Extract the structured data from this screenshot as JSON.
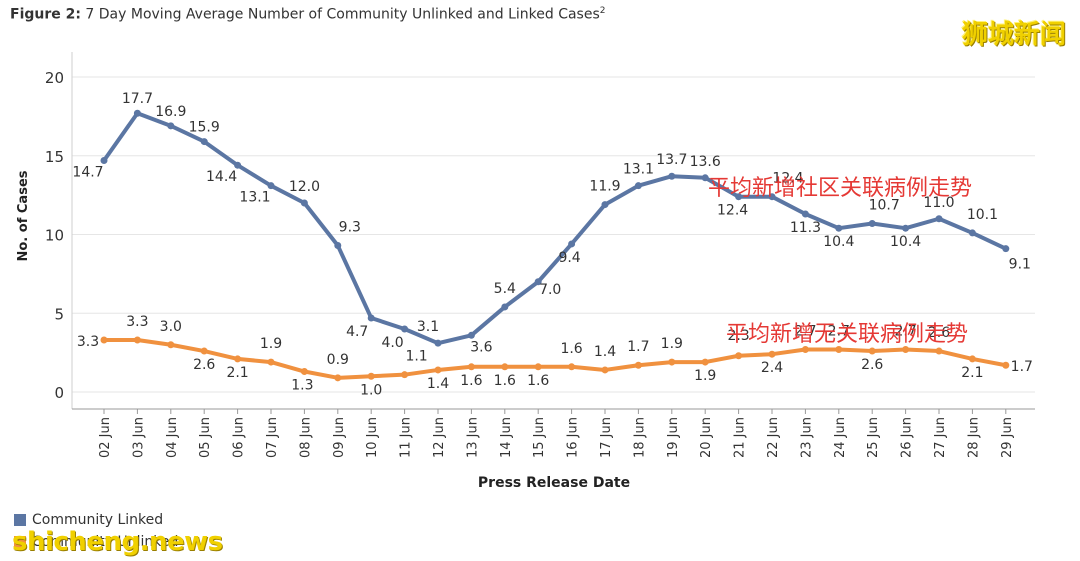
{
  "title": {
    "prefix": "Figure 2:",
    "text": " 7 Day Moving Average Number of Community Unlinked and Linked Cases",
    "sup": "2"
  },
  "watermarks": {
    "top": "狮城新闻",
    "bottom": "shicheng.news"
  },
  "annotations": {
    "linked": "平均新增社区关联病例走势",
    "unlinked": "平均新增无关联病例走势"
  },
  "legend": [
    {
      "label": "Community Linked",
      "color": "#5b76a3"
    },
    {
      "label": "Community Unlinked",
      "color": "#f0913f"
    }
  ],
  "chart_data": {
    "type": "line",
    "xlabel": "Press Release Date",
    "ylabel": "No. of Cases",
    "ylim": [
      0,
      20
    ],
    "yticks": [
      0,
      5,
      10,
      15,
      20
    ],
    "grid": true,
    "categories": [
      "02 Jun",
      "03 Jun",
      "04 Jun",
      "05 Jun",
      "06 Jun",
      "07 Jun",
      "08 Jun",
      "09 Jun",
      "10 Jun",
      "11 Jun",
      "12 Jun",
      "13 Jun",
      "14 Jun",
      "15 Jun",
      "16 Jun",
      "17 Jun",
      "18 Jun",
      "19 Jun",
      "20 Jun",
      "21 Jun",
      "22 Jun",
      "23 Jun",
      "24 Jun",
      "25 Jun",
      "26 Jun",
      "27 Jun",
      "28 Jun",
      "29 Jun"
    ],
    "series": [
      {
        "name": "Community Linked",
        "color": "#5b76a3",
        "values": [
          14.7,
          17.7,
          16.9,
          15.9,
          14.4,
          13.1,
          12.0,
          9.3,
          4.7,
          4.0,
          3.1,
          3.6,
          5.4,
          7.0,
          9.4,
          11.9,
          13.1,
          13.7,
          13.6,
          12.4,
          12.4,
          11.3,
          10.4,
          10.7,
          10.4,
          11.0,
          10.1,
          9.1
        ],
        "labels": [
          "14.7",
          "17.7",
          "16.9",
          "15.9",
          "14.4",
          "13.1",
          "12.0",
          "9.3",
          "4.7",
          "4.0",
          "3.1",
          "3.6",
          "5.4",
          "7.0",
          "9.4",
          "11.9",
          "13.1",
          "13.7",
          "13.6",
          "12.4",
          "12.4",
          "11.3",
          "10.4",
          "10.7",
          "10.4",
          "11.0",
          "10.1",
          "9.1"
        ]
      },
      {
        "name": "Community Unlinked",
        "color": "#f0913f",
        "values": [
          3.3,
          3.3,
          3.0,
          2.6,
          2.1,
          1.9,
          1.3,
          0.9,
          1.0,
          1.1,
          1.4,
          1.6,
          1.6,
          1.6,
          1.6,
          1.4,
          1.7,
          1.9,
          1.9,
          2.3,
          2.4,
          2.7,
          2.7,
          2.6,
          2.7,
          2.6,
          2.1,
          1.7
        ],
        "labels": [
          "3.3",
          "3.3",
          "3.0",
          "2.6",
          "2.1",
          "1.9",
          "1.3",
          "0.9",
          "1.0",
          "1.1",
          "1.4",
          "1.6",
          "1.6",
          "1.6",
          "1.6",
          "1.4",
          "1.7",
          "1.9",
          "1.9",
          "2.3",
          "2.4",
          "2.7",
          "2.7",
          "2.6",
          "2.7",
          "2.6",
          "2.1",
          "1.7"
        ]
      }
    ]
  }
}
